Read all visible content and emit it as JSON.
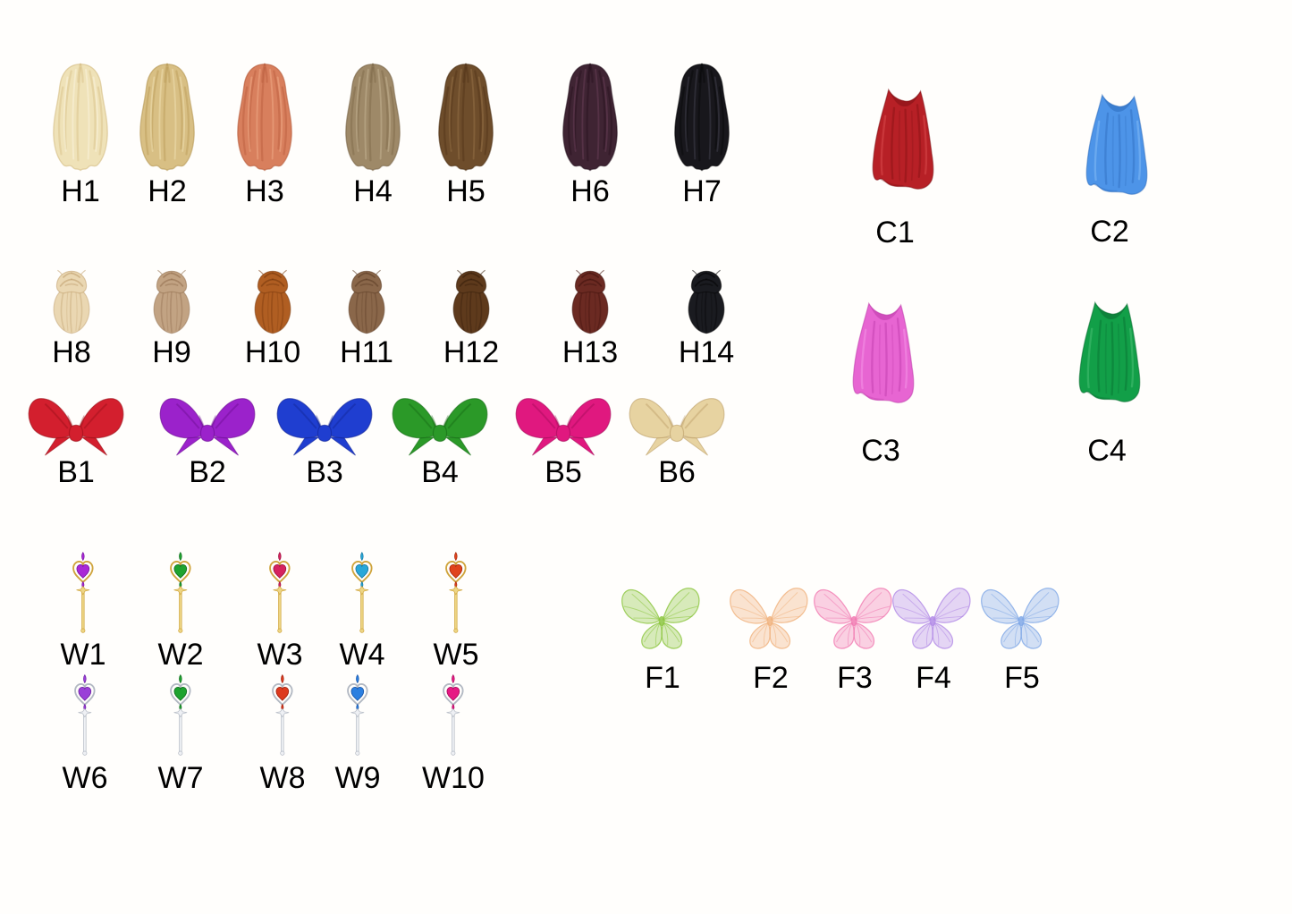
{
  "background": "#fffefc",
  "text_color": "#000000",
  "groups": {
    "hair_long": {
      "items": [
        {
          "label": "H1",
          "base": "#efe2b8",
          "dark": "#d2b87c",
          "light": "#f9f1d8"
        },
        {
          "label": "H2",
          "base": "#d8bf84",
          "dark": "#b2944e",
          "light": "#eddcab"
        },
        {
          "label": "H3",
          "base": "#d87f5d",
          "dark": "#b25836",
          "light": "#eca582"
        },
        {
          "label": "H4",
          "base": "#9e8968",
          "dark": "#756143",
          "light": "#bfae8d"
        },
        {
          "label": "H5",
          "base": "#6e4d2b",
          "dark": "#4b2f14",
          "light": "#906d43"
        },
        {
          "label": "H6",
          "base": "#3f2433",
          "dark": "#220e1b",
          "light": "#633b51"
        },
        {
          "label": "H7",
          "base": "#18171c",
          "dark": "#040405",
          "light": "#3c3b46"
        }
      ]
    },
    "hair_bun": {
      "items": [
        {
          "label": "H8",
          "base": "#ead7b2",
          "dark": "#c2a271",
          "light": "#f8eed4"
        },
        {
          "label": "H9",
          "base": "#c2a383",
          "dark": "#947151",
          "light": "#ddc5a9"
        },
        {
          "label": "H10",
          "base": "#b05e22",
          "dark": "#7a3a0e",
          "light": "#d0854a"
        },
        {
          "label": "H11",
          "base": "#8a674a",
          "dark": "#5f4028",
          "light": "#ab8c6e"
        },
        {
          "label": "H12",
          "base": "#5e3a1c",
          "dark": "#39200c",
          "light": "#805832"
        },
        {
          "label": "H13",
          "base": "#6b2a22",
          "dark": "#42140f",
          "light": "#8f463b"
        },
        {
          "label": "H14",
          "base": "#1a1b20",
          "dark": "#050506",
          "light": "#3e4049"
        }
      ]
    },
    "bows": {
      "items": [
        {
          "label": "B1",
          "base": "#d31f2e",
          "dark": "#9a0f18"
        },
        {
          "label": "B2",
          "base": "#9b22cb",
          "dark": "#6c0e92"
        },
        {
          "label": "B3",
          "base": "#1f3ed0",
          "dark": "#122596"
        },
        {
          "label": "B4",
          "base": "#2b9928",
          "dark": "#166b15"
        },
        {
          "label": "B5",
          "base": "#e0187f",
          "dark": "#a50b5a"
        },
        {
          "label": "B6",
          "base": "#e7d3a1",
          "dark": "#bd9e68"
        }
      ]
    },
    "capes": {
      "items": [
        {
          "label": "C1",
          "base": "#b72026",
          "dark": "#7c0e12",
          "light": "#d8494b"
        },
        {
          "label": "C2",
          "base": "#4d94e8",
          "dark": "#2a67b8",
          "light": "#84baf4"
        },
        {
          "label": "C3",
          "base": "#e765d2",
          "dark": "#ba35a6",
          "light": "#f494e5"
        },
        {
          "label": "C4",
          "base": "#129f48",
          "dark": "#07682e",
          "light": "#47be72"
        }
      ]
    },
    "wands_gold": {
      "frame": {
        "stroke": "#cfa43c",
        "fill": "#edd584"
      },
      "items": [
        {
          "label": "W1",
          "gem": "#a928d6",
          "gem_dark": "#7a16a2"
        },
        {
          "label": "W2",
          "gem": "#1ea32f",
          "gem_dark": "#116f1f"
        },
        {
          "label": "W3",
          "gem": "#d6235e",
          "gem_dark": "#9c1241"
        },
        {
          "label": "W4",
          "gem": "#28a7d8",
          "gem_dark": "#1677a0"
        },
        {
          "label": "W5",
          "gem": "#e0431c",
          "gem_dark": "#a6290d"
        }
      ]
    },
    "wands_silver": {
      "frame": {
        "stroke": "#b3b9c3",
        "fill": "#eef0f4"
      },
      "items": [
        {
          "label": "W6",
          "gem": "#9a3fd8",
          "gem_dark": "#6e22a5"
        },
        {
          "label": "W7",
          "gem": "#1ea32f",
          "gem_dark": "#116f1f"
        },
        {
          "label": "W8",
          "gem": "#dd3a1e",
          "gem_dark": "#a1230f"
        },
        {
          "label": "W9",
          "gem": "#2b7fe0",
          "gem_dark": "#1956a9"
        },
        {
          "label": "W10",
          "gem": "#e61984",
          "gem_dark": "#ab0c5f"
        }
      ]
    },
    "fairy_wings": {
      "items": [
        {
          "label": "F1",
          "base": "#8cc63f"
        },
        {
          "label": "F2",
          "base": "#f0b27d"
        },
        {
          "label": "F3",
          "base": "#f17ab2"
        },
        {
          "label": "F4",
          "base": "#b28ae6"
        },
        {
          "label": "F5",
          "base": "#7fa7e6"
        }
      ]
    }
  }
}
